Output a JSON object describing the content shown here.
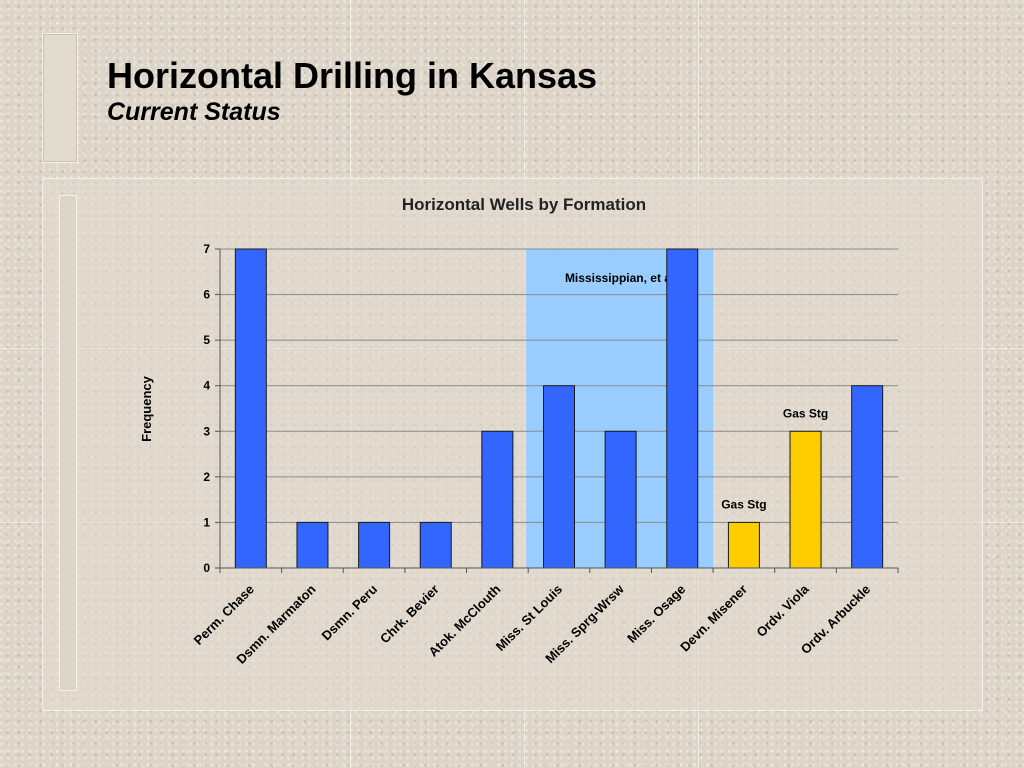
{
  "slide": {
    "title": "Horizontal Drilling in Kansas",
    "subtitle": "Current Status"
  },
  "chart_data": {
    "type": "bar",
    "title": "Horizontal Wells by Formation",
    "xlabel": "",
    "ylabel": "Frequency",
    "ylim": [
      0,
      7
    ],
    "yticks": [
      0,
      1,
      2,
      3,
      4,
      5,
      6,
      7
    ],
    "grid": true,
    "categories": [
      "Perm. Chase",
      "Dsmn. Marmaton",
      "Dsmn. Peru",
      "Chrk. Bevier",
      "Atok. McClouth",
      "Miss. St Louis",
      "Miss. Sprg-Wrsw",
      "Miss. Osage",
      "Devn. Misener",
      "Ordv. Viola",
      "Ordv. Arbuckle"
    ],
    "values": [
      7,
      1,
      1,
      1,
      3,
      4,
      3,
      7,
      1,
      3,
      4
    ],
    "bar_colors": [
      "#3366ff",
      "#3366ff",
      "#3366ff",
      "#3366ff",
      "#3366ff",
      "#3366ff",
      "#3366ff",
      "#3366ff",
      "#ffcc00",
      "#ffcc00",
      "#3366ff"
    ],
    "highlight_region": {
      "label": "Mississippian, et al",
      "from_category": "Miss. St Louis",
      "to_category": "Miss. Osage",
      "color": "#99ccff"
    },
    "annotations": [
      {
        "text": "Gas Stg",
        "category": "Devn. Misener"
      },
      {
        "text": "Gas Stg",
        "category": "Ordv. Viola"
      }
    ]
  }
}
